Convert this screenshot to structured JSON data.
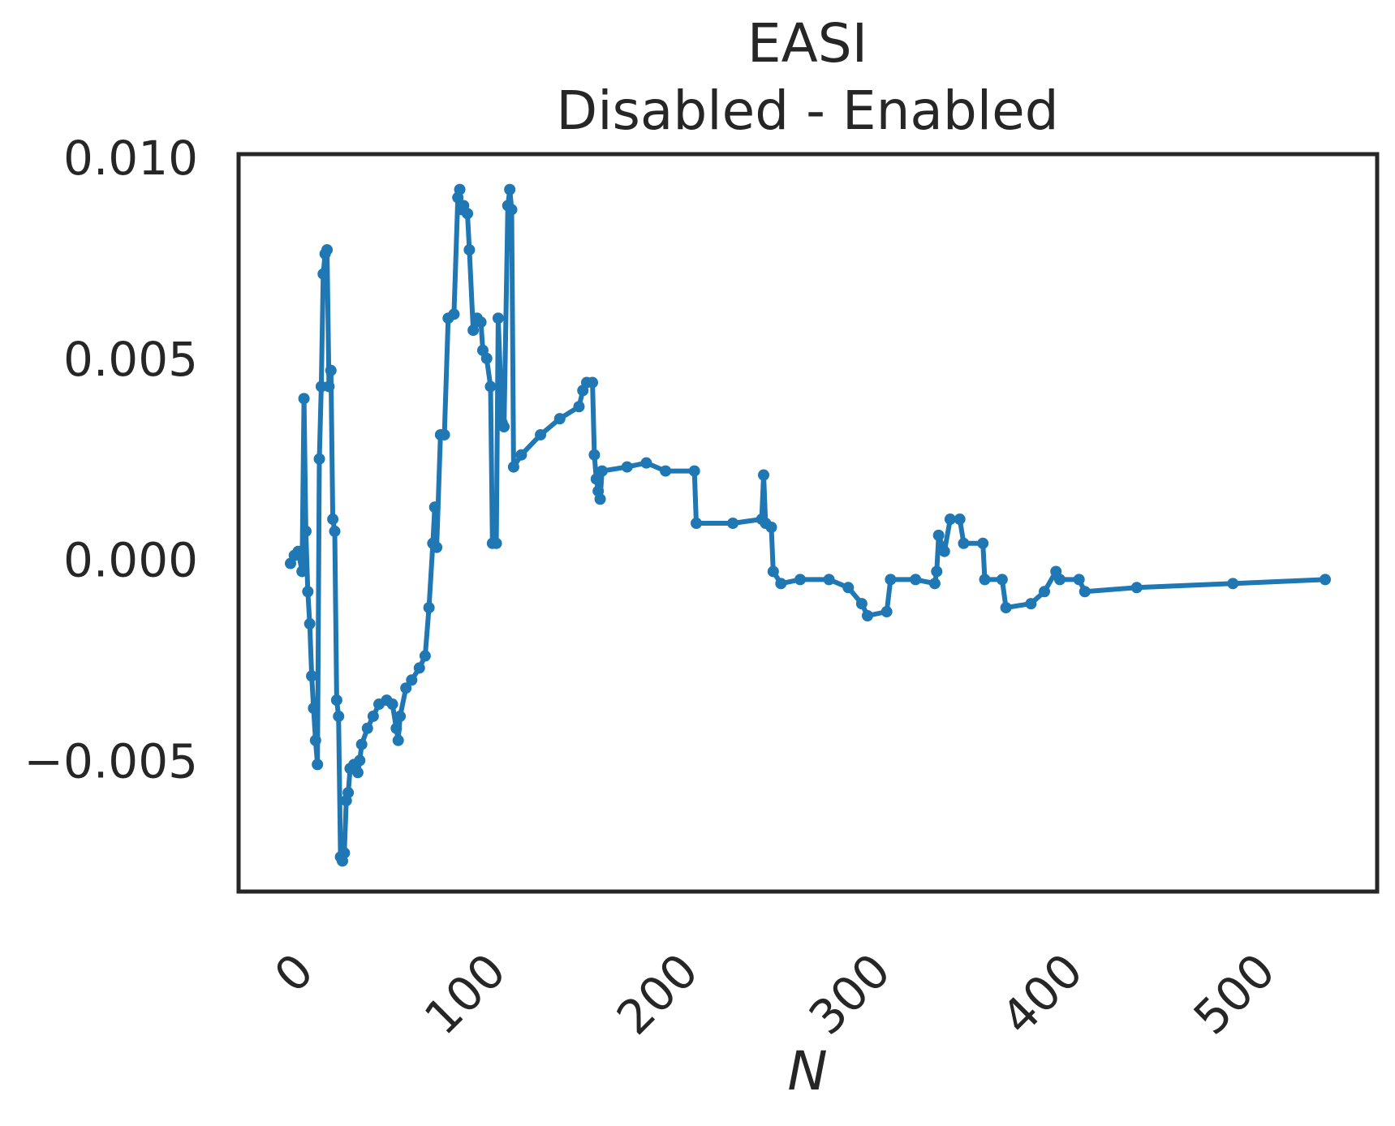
{
  "chart_data": {
    "type": "line",
    "title": "EASI",
    "subtitle": "Disabled - Enabled",
    "xlabel": "N",
    "color": "#1f77b4",
    "xlim": [
      -27,
      565
    ],
    "ylim": [
      -0.00816,
      0.01018
    ],
    "xticks": [
      0,
      100,
      200,
      300,
      400,
      500
    ],
    "yticks": [
      {
        "value": -0.005,
        "label": "−0.005"
      },
      {
        "value": 0,
        "label": "0.000"
      },
      {
        "value": 0.005,
        "label": "0.005"
      },
      {
        "value": 0.01,
        "label": "0.010"
      }
    ],
    "x": [
      0,
      2,
      4,
      6,
      7,
      8,
      9,
      10,
      11,
      12,
      13,
      14,
      15,
      16,
      17,
      18,
      19,
      20,
      21,
      22,
      23,
      24,
      25,
      26,
      27,
      28,
      29,
      30,
      31,
      33,
      35,
      36,
      37,
      40,
      43,
      46,
      50,
      53,
      55,
      56,
      57,
      60,
      63,
      67,
      70,
      72,
      74,
      75,
      76,
      78,
      80,
      82,
      85,
      87,
      88,
      89,
      90,
      92,
      93,
      95,
      97,
      99,
      100,
      102,
      104,
      105,
      107,
      108,
      110,
      111,
      113,
      114,
      115,
      116,
      120,
      130,
      140,
      150,
      152,
      154,
      157,
      158,
      159,
      160,
      161,
      162,
      175,
      185,
      195,
      210,
      211,
      230,
      245,
      246,
      247,
      250,
      251,
      255,
      265,
      280,
      290,
      297,
      300,
      310,
      312,
      325,
      335,
      336,
      337,
      340,
      343,
      348,
      350,
      360,
      361,
      370,
      372,
      385,
      392,
      398,
      400,
      410,
      413,
      440,
      490,
      538
    ],
    "values": [
      0.0,
      0.0002,
      0.0003,
      -0.0002,
      0.0041,
      0.0008,
      -0.0007,
      -0.0015,
      -0.0028,
      -0.0036,
      -0.0044,
      -0.005,
      0.0026,
      0.0044,
      0.0072,
      0.0077,
      0.0078,
      0.0044,
      0.0048,
      0.0011,
      0.0008,
      -0.0034,
      -0.0038,
      -0.0073,
      -0.0074,
      -0.0072,
      -0.0059,
      -0.0057,
      -0.0051,
      -0.005,
      -0.0052,
      -0.0049,
      -0.0045,
      -0.0041,
      -0.0038,
      -0.0035,
      -0.0034,
      -0.0035,
      -0.0041,
      -0.0044,
      -0.0038,
      -0.0031,
      -0.0029,
      -0.0026,
      -0.0023,
      -0.0011,
      0.0005,
      0.0014,
      0.0004,
      0.0032,
      0.0032,
      0.0061,
      0.0062,
      0.0091,
      0.0093,
      0.0088,
      0.0089,
      0.0087,
      0.0078,
      0.0058,
      0.0061,
      0.006,
      0.0053,
      0.0051,
      0.0044,
      0.0005,
      0.0005,
      0.0061,
      0.0035,
      0.0034,
      0.0089,
      0.0093,
      0.0088,
      0.0024,
      0.0027,
      0.0032,
      0.0036,
      0.0039,
      0.0043,
      0.0045,
      0.0045,
      0.0027,
      0.0021,
      0.0018,
      0.0016,
      0.0023,
      0.0024,
      0.0025,
      0.0023,
      0.0023,
      0.001,
      0.001,
      0.0011,
      0.0022,
      0.001,
      0.0009,
      -0.0002,
      -0.0005,
      -0.0004,
      -0.0004,
      -0.0006,
      -0.001,
      -0.0013,
      -0.0012,
      -0.0004,
      -0.0004,
      -0.0005,
      -0.0002,
      0.0007,
      0.0003,
      0.0011,
      0.0011,
      0.0005,
      0.0005,
      -0.0004,
      -0.0004,
      -0.0011,
      -0.001,
      -0.0007,
      -0.0002,
      -0.0004,
      -0.0004,
      -0.0007,
      -0.0006,
      -0.0005,
      -0.0004
    ]
  }
}
